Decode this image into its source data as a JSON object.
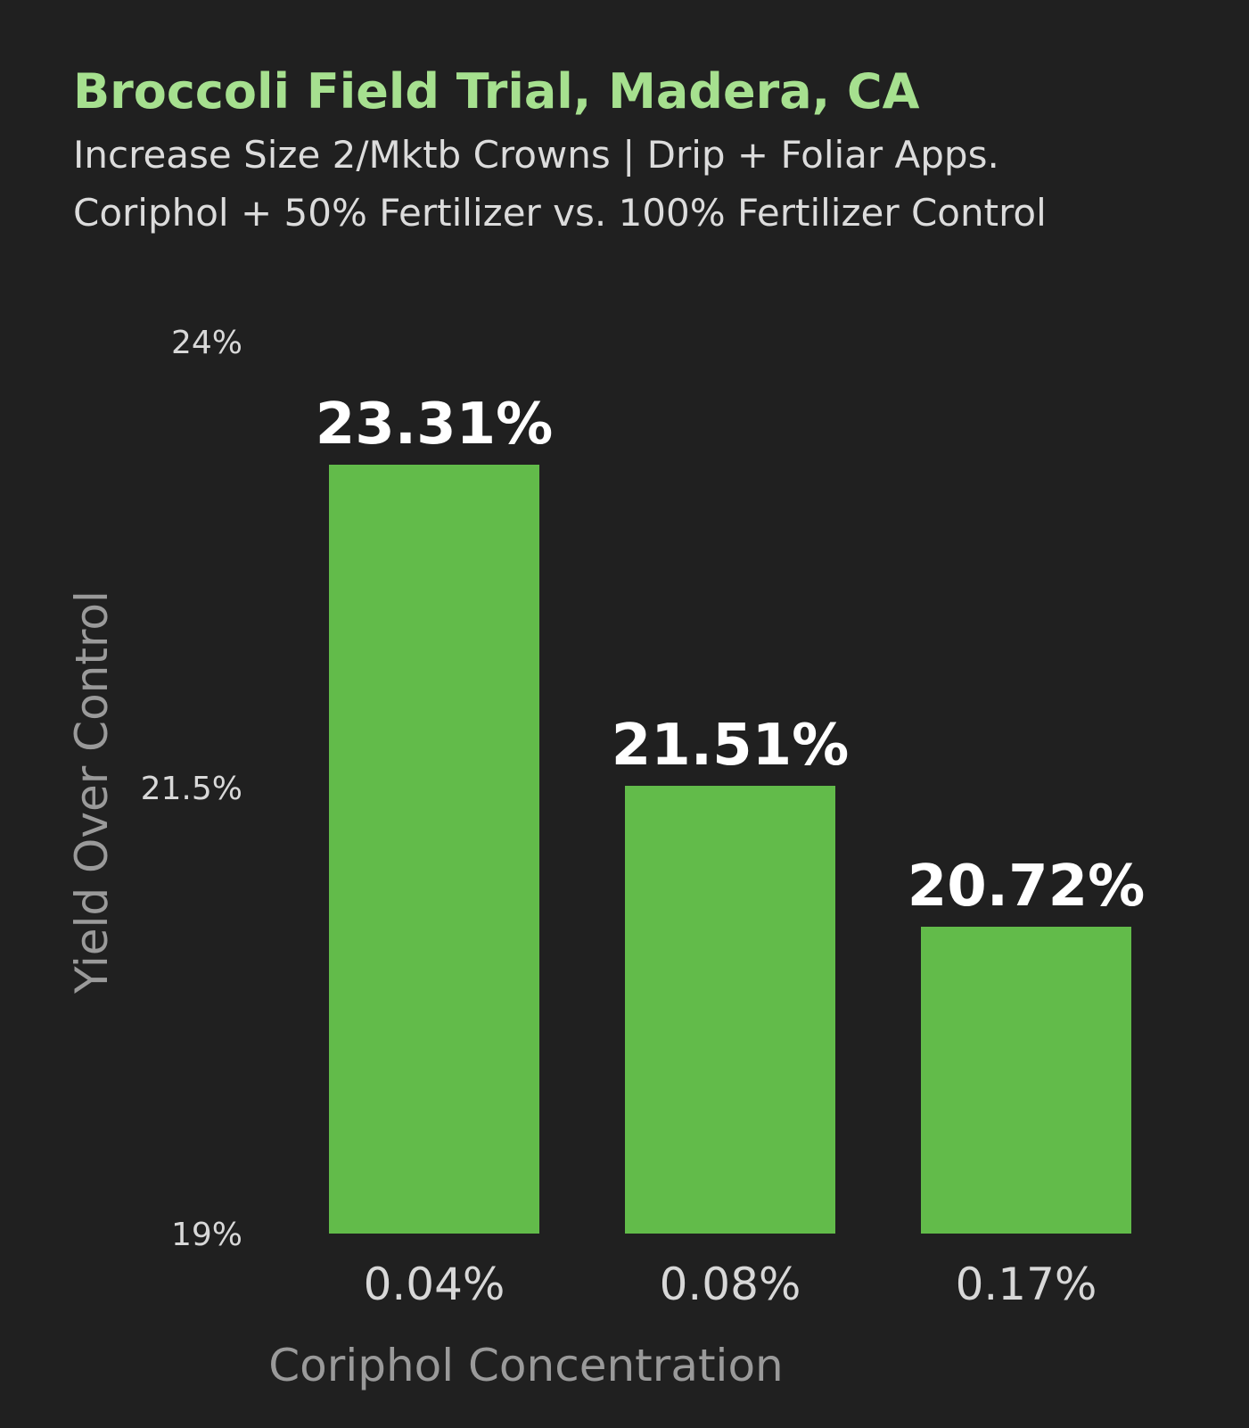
{
  "chart_data": {
    "type": "bar",
    "title": "Broccoli Field Trial, Madera, CA",
    "subtitle_lines": [
      "Increase Size 2/Mktb Crowns | Drip + Foliar Apps.",
      "Coriphol + 50% Fertilizer vs. 100% Fertilizer Control"
    ],
    "xlabel": "Coriphol Concentration",
    "ylabel": "Yield Over Control",
    "categories": [
      "0.04%",
      "0.08%",
      "0.17%"
    ],
    "values": [
      23.31,
      21.51,
      20.72
    ],
    "value_labels": [
      "23.31%",
      "21.51%",
      "20.72%"
    ],
    "ylim": [
      19,
      24
    ],
    "yticks": [
      {
        "value": 19,
        "label": "19%"
      },
      {
        "value": 21.5,
        "label": "21.5%"
      },
      {
        "value": 24,
        "label": "24%"
      }
    ],
    "grid": false,
    "colors": {
      "background": "#202020",
      "bar": "#62bb4a",
      "title": "#a6e08f",
      "subtitle": "#dcdcdc",
      "tick": "#d8d8d8",
      "value_label": "#ffffff",
      "axis_title": "#9a9a9a",
      "category": "#d8d8d8"
    }
  }
}
